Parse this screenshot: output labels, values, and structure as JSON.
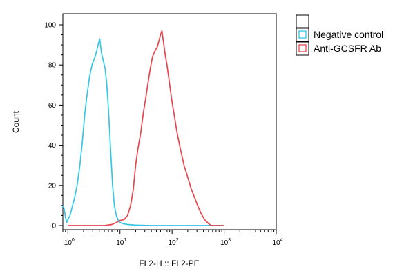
{
  "chart_data": {
    "type": "line",
    "xlabel": "FL2-H :: FL2-PE",
    "ylabel": "Count",
    "x_scale": "log",
    "xlim": [
      0.8,
      10000
    ],
    "ylim": [
      0,
      100
    ],
    "x_ticks": [
      {
        "value": 1,
        "base": "10",
        "exp": "0"
      },
      {
        "value": 10,
        "base": "10",
        "exp": "1"
      },
      {
        "value": 100,
        "base": "10",
        "exp": "2"
      },
      {
        "value": 1000,
        "base": "10",
        "exp": "3"
      },
      {
        "value": 10000,
        "base": "10",
        "exp": "4"
      }
    ],
    "y_ticks": [
      "0",
      "20",
      "40",
      "60",
      "80",
      "100"
    ],
    "grid": false,
    "legend_position": "top-right, outside plot",
    "series": [
      {
        "name": "Negative control",
        "color": "#33c6e8",
        "points": [
          [
            0.8,
            10
          ],
          [
            0.85,
            8
          ],
          [
            0.9,
            4
          ],
          [
            0.95,
            1.5
          ],
          [
            1.0,
            3
          ],
          [
            1.1,
            5
          ],
          [
            1.2,
            9
          ],
          [
            1.35,
            14
          ],
          [
            1.5,
            20
          ],
          [
            1.7,
            30
          ],
          [
            1.9,
            42
          ],
          [
            2.1,
            55
          ],
          [
            2.3,
            64
          ],
          [
            2.6,
            74
          ],
          [
            2.9,
            80
          ],
          [
            3.2,
            83
          ],
          [
            3.5,
            86
          ],
          [
            3.8,
            90
          ],
          [
            4.1,
            93
          ],
          [
            4.4,
            86
          ],
          [
            4.8,
            82
          ],
          [
            5.2,
            78
          ],
          [
            5.6,
            70
          ],
          [
            6.0,
            58
          ],
          [
            6.6,
            38
          ],
          [
            7.2,
            20
          ],
          [
            7.8,
            10
          ],
          [
            8.5,
            5
          ],
          [
            9.5,
            2
          ],
          [
            11,
            1
          ],
          [
            14,
            0.5
          ],
          [
            20,
            0.2
          ],
          [
            40,
            0
          ],
          [
            1000,
            0
          ]
        ]
      },
      {
        "name": "Anti-GCSFR Ab",
        "color": "#e8444c",
        "points": [
          [
            1,
            0
          ],
          [
            5,
            0
          ],
          [
            7,
            0.5
          ],
          [
            8.5,
            1.5
          ],
          [
            10,
            2.5
          ],
          [
            12,
            3
          ],
          [
            14,
            5
          ],
          [
            16,
            10
          ],
          [
            18,
            18
          ],
          [
            20,
            30
          ],
          [
            22,
            38
          ],
          [
            25,
            46
          ],
          [
            28,
            56
          ],
          [
            31,
            63
          ],
          [
            34,
            70
          ],
          [
            38,
            78
          ],
          [
            42,
            84
          ],
          [
            47,
            87
          ],
          [
            52,
            89
          ],
          [
            56,
            92
          ],
          [
            60,
            95
          ],
          [
            64,
            97
          ],
          [
            68,
            92
          ],
          [
            74,
            85
          ],
          [
            80,
            80
          ],
          [
            88,
            72
          ],
          [
            98,
            63
          ],
          [
            110,
            55
          ],
          [
            125,
            46
          ],
          [
            145,
            38
          ],
          [
            170,
            30
          ],
          [
            200,
            24
          ],
          [
            235,
            18
          ],
          [
            270,
            14
          ],
          [
            310,
            10
          ],
          [
            360,
            6
          ],
          [
            420,
            3
          ],
          [
            500,
            1
          ],
          [
            560,
            0
          ],
          [
            1000,
            0
          ]
        ]
      }
    ]
  }
}
